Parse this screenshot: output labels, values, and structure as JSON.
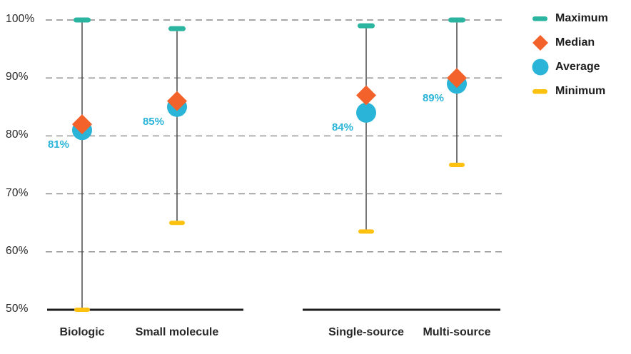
{
  "chart_data": {
    "type": "range",
    "title": "",
    "ylim": [
      50,
      100
    ],
    "yticks": [
      100,
      90,
      80,
      70,
      60,
      50
    ],
    "ytick_labels": [
      "100%",
      "90%",
      "80%",
      "70%",
      "60%",
      "50%"
    ],
    "grid": "horizontal dashed",
    "legend_position": "right",
    "colors": {
      "maximum": "#2BB5A0",
      "median": "#F2622A",
      "average": "#29B4D8",
      "minimum": "#FDC110"
    },
    "groups": [
      {
        "categories": [
          {
            "label": "Biologic",
            "maximum": 100,
            "median": 82,
            "average": 81,
            "minimum": 50,
            "average_label": "81%"
          },
          {
            "label": "Small molecule",
            "maximum": 98.5,
            "median": 86,
            "average": 85,
            "minimum": 65,
            "average_label": "85%"
          }
        ]
      },
      {
        "categories": [
          {
            "label": "Single-source",
            "maximum": 99,
            "median": 87,
            "average": 84,
            "minimum": 63.5,
            "average_label": "84%"
          },
          {
            "label": "Multi-source",
            "maximum": 100,
            "median": 90,
            "average": 89,
            "minimum": 75,
            "average_label": "89%"
          }
        ]
      }
    ],
    "legend": [
      {
        "label": "Maximum",
        "marker": "dash"
      },
      {
        "label": "Median",
        "marker": "diamond"
      },
      {
        "label": "Average",
        "marker": "circle"
      },
      {
        "label": "Minimum",
        "marker": "dash"
      }
    ]
  }
}
